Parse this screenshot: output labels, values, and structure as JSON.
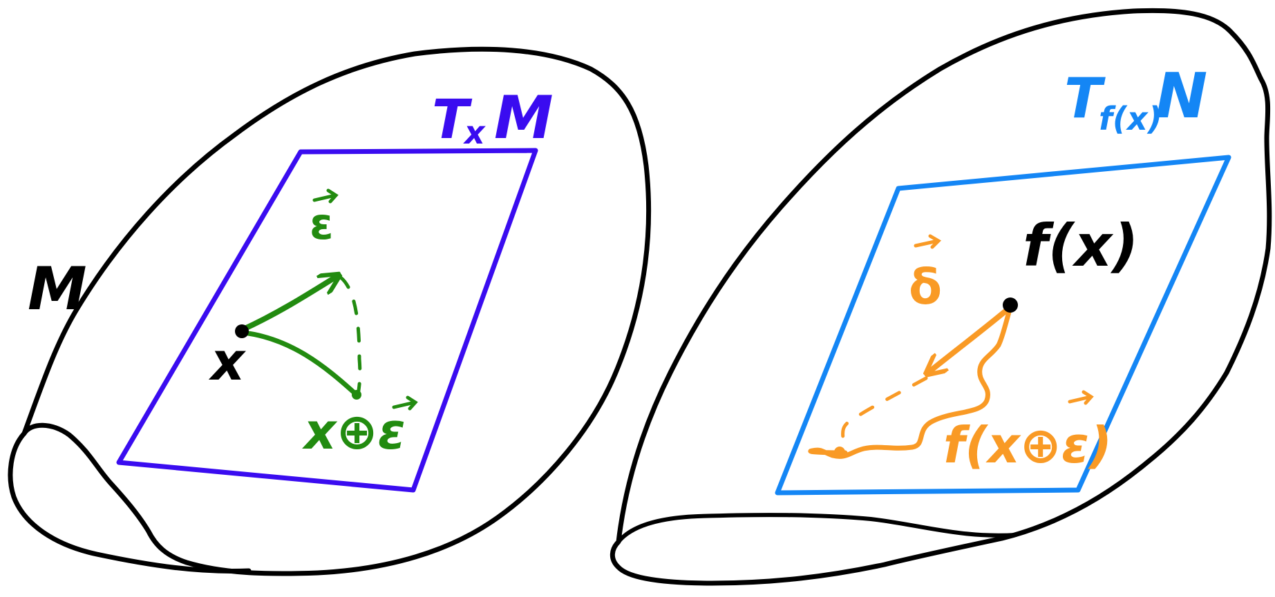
{
  "left_manifold": {
    "label": "M",
    "tangent_space": {
      "T": "T",
      "sub": "x",
      "space": "M"
    },
    "point_label": "x",
    "vector_label": "ε",
    "result_label": "x⊕ε"
  },
  "right_manifold": {
    "tangent_space": {
      "T": "T",
      "sub": "f(x)",
      "space": "N"
    },
    "point_label": "f(x)",
    "vector_label": "δ",
    "result_label": "f(x⊕ε)"
  },
  "colors": {
    "outline": "#000000",
    "left_plane": "#3a0cf0",
    "right_plane": "#1486f5",
    "green": "#228b10",
    "orange": "#f99a25"
  }
}
